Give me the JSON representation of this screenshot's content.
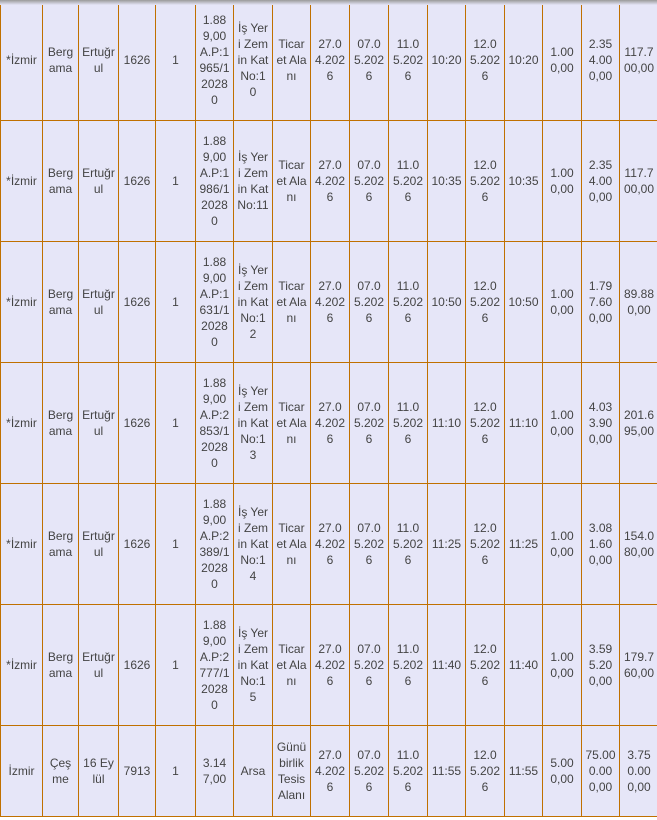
{
  "colors": {
    "cell_bg": "#e6e6f8",
    "border": "#c07000",
    "text": "#444444"
  },
  "rows": [
    [
      "*İzmir",
      "Bergama",
      "Ertuğrul",
      "1626",
      "1",
      "1.889,00 A.P:1965/12028 0",
      "İş Yeri Zemin Kat No:10",
      "Ticaret Alanı",
      "27.04.2026",
      "07.05.2026",
      "11.05.2026",
      "10:20",
      "12.05.2026",
      "10:20",
      "1.000,00",
      "2.354.000,00",
      "117.700,00"
    ],
    [
      "*İzmir",
      "Bergama",
      "Ertuğrul",
      "1626",
      "1",
      "1.889,00 A.P:1986/12028 0",
      "İş Yeri Zemin Kat No:11",
      "Ticaret Alanı",
      "27.04.2026",
      "07.05.2026",
      "11.05.2026",
      "10:35",
      "12.05.2026",
      "10:35",
      "1.000,00",
      "2.354.000,00",
      "117.700,00"
    ],
    [
      "*İzmir",
      "Bergama",
      "Ertuğrul",
      "1626",
      "1",
      "1.889,00 A.P:1631/12028 0",
      "İş Yeri Zemin Kat No:12",
      "Ticaret Alanı",
      "27.04.2026",
      "07.05.2026",
      "11.05.2026",
      "10:50",
      "12.05.2026",
      "10:50",
      "1.000,00",
      "1.797.600,00",
      "89.880,00"
    ],
    [
      "*İzmir",
      "Bergama",
      "Ertuğrul",
      "1626",
      "1",
      "1.889,00 A.P:2853/12028 0",
      "İş Yeri Zemin Kat No:13",
      "Ticaret Alanı",
      "27.04.2026",
      "07.05.2026",
      "11.05.2026",
      "11:10",
      "12.05.2026",
      "11:10",
      "1.000,00",
      "4.033.900,00",
      "201.695,00"
    ],
    [
      "*İzmir",
      "Bergama",
      "Ertuğrul",
      "1626",
      "1",
      "1.889,00 A.P:2389/12028 0",
      "İş Yeri Zemin Kat No:14",
      "Ticaret Alanı",
      "27.04.2026",
      "07.05.2026",
      "11.05.2026",
      "11:25",
      "12.05.2026",
      "11:25",
      "1.000,00",
      "3.081.600,00",
      "154.080,00"
    ],
    [
      "*İzmir",
      "Bergama",
      "Ertuğrul",
      "1626",
      "1",
      "1.889,00 A.P:2777/12028 0",
      "İş Yeri Zemin Kat No:15",
      "Ticaret Alanı",
      "27.04.2026",
      "07.05.2026",
      "11.05.2026",
      "11:40",
      "12.05.2026",
      "11:40",
      "1.000,00",
      "3.595.200,00",
      "179.760,00"
    ],
    [
      "İzmir",
      "Çeşme",
      "16 Eylül",
      "7913",
      "1",
      "3.147,00",
      "Arsa",
      "Günübirlik Tesis Alanı",
      "27.04.2026",
      "07.05.2026",
      "11.05.2026",
      "11:55",
      "12.05.2026",
      "11:55",
      "5.000,00",
      "75.000.000,00",
      "3.750.000,00"
    ]
  ]
}
